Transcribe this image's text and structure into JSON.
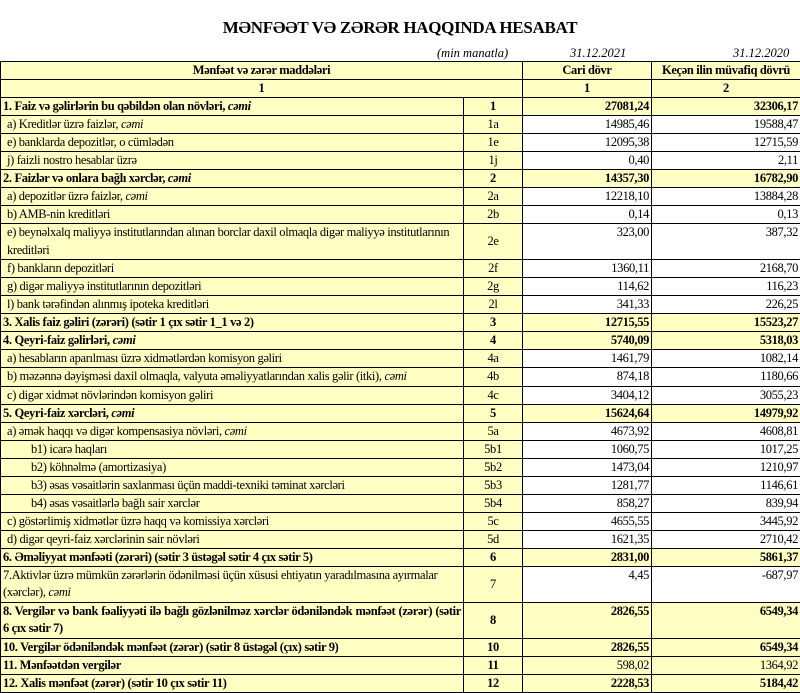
{
  "title": "MƏNFƏƏT VƏ ZƏRƏR HAQQINDA HESABAT",
  "units": "(min manatla)",
  "date_current": "31.12.2021",
  "date_previous": "31.12.2020",
  "header": {
    "col_items": "Mənfəət və zərər maddələri",
    "col_current": "Cari dövr",
    "col_previous": "Keçən ilin müvafiq dövrü",
    "num_items": "1",
    "num_current": "1",
    "num_previous": "2"
  },
  "colors": {
    "cell_fill": "#ffffc4",
    "value_fill": "#ffffff"
  },
  "rows": [
    {
      "label": "1. Faiz və gəlirlərin bu qəbildən olan növləri, ",
      "em": "cəmi",
      "code": "1",
      "current": "27081,24",
      "previous": "32306,17",
      "bold": true
    },
    {
      "label": "a) Kreditlər üzrə faizlər, ",
      "em": "cəmi",
      "code": "1a",
      "current": "14985,46",
      "previous": "19588,47",
      "indent": 1
    },
    {
      "label": "e) banklarda depozitlər, o cümlədən",
      "code": "1e",
      "current": "12095,38",
      "previous": "12715,59",
      "indent": 1
    },
    {
      "label": "j) faizli nostro hesablar üzrə",
      "code": "1j",
      "current": "0,40",
      "previous": "2,11",
      "indent": 1
    },
    {
      "label": "2. Faizlər və onlara bağlı xərclər, ",
      "em": "cəmi",
      "code": "2",
      "current": "14357,30",
      "previous": "16782,90",
      "bold": true
    },
    {
      "label": "a) depozitlər üzrə faizlər, ",
      "em": "cəmi",
      "code": "2a",
      "current": "12218,10",
      "previous": "13884,28",
      "indent": 1
    },
    {
      "label": "b) AMB-nin kreditləri",
      "code": "2b",
      "current": "0,14",
      "previous": "0,13",
      "indent": 1
    },
    {
      "label": "e) beynəlxalq maliyyə institutlarından alınan borclar daxil olmaqla digər maliyyə institutlarının kreditləri",
      "code": "2e",
      "current": "323,00",
      "previous": "387,32",
      "indent": 1,
      "double": true
    },
    {
      "label": "f) bankların depozitləri",
      "code": "2f",
      "current": "1360,11",
      "previous": "2168,70",
      "indent": 1
    },
    {
      "label": "g) digər maliyyə institutlarının depozitləri",
      "code": "2g",
      "current": "114,62",
      "previous": "116,23",
      "indent": 1
    },
    {
      "label": "l) bank tərəfindən alınmış ipoteka kreditləri",
      "code": "2l",
      "current": "341,33",
      "previous": "226,25",
      "indent": 1
    },
    {
      "label": "3. Xalis faiz gəliri (zərəri) (sətir 1 çıx sətir 1_1 və 2)",
      "code": "3",
      "current": "12715,55",
      "previous": "15523,27",
      "bold": true
    },
    {
      "label": "4. Qeyri-faiz gəlirləri, ",
      "em": "cəmi",
      "code": "4",
      "current": "5740,09",
      "previous": "5318,03",
      "bold": true
    },
    {
      "label": "a) hesabların aparılması üzrə xidmətlərdən komisyon gəliri",
      "code": "4a",
      "current": "1461,79",
      "previous": "1082,14",
      "indent": 1
    },
    {
      "label": "b) məzənnə dəyişməsi daxil olmaqla, valyuta əməliyyatlarından xalis gəlir (itki), ",
      "em": "cəmi",
      "code": "4b",
      "current": "874,18",
      "previous": "1180,66",
      "indent": 1,
      "double": true
    },
    {
      "label": "c) digər xidmət növlərindən komisyon gəliri",
      "code": "4c",
      "current": "3404,12",
      "previous": "3055,23",
      "indent": 1
    },
    {
      "label": "5. Qeyri-faiz xərcləri, ",
      "em": "cəmi",
      "code": "5",
      "current": "15624,64",
      "previous": "14979,92",
      "bold": true
    },
    {
      "label": "a) əmək haqqı və digər kompensasiya növləri, ",
      "em": "cəmi",
      "code": "5a",
      "current": "4673,92",
      "previous": "4608,81",
      "indent": 1
    },
    {
      "label": "b1) icarə haqları",
      "code": "5b1",
      "current": "1060,75",
      "previous": "1017,25",
      "indent": 2
    },
    {
      "label": "b2) köhnəlmə (amortizasiya)",
      "code": "5b2",
      "current": "1473,04",
      "previous": "1210,97",
      "indent": 2
    },
    {
      "label": "b3) əsas vəsaitlərin saxlanması üçün maddi-texniki təminat xərcləri",
      "code": "5b3",
      "current": "1281,77",
      "previous": "1146,61",
      "indent": 2
    },
    {
      "label": "b4) əsas vəsaitlərlə bağlı sair xərclər",
      "code": "5b4",
      "current": "858,27",
      "previous": "839,94",
      "indent": 2
    },
    {
      "label": "c) göstərlimiş xidmətlər üzrə haqq və komissiya xərcləri",
      "code": "5c",
      "current": "4655,55",
      "previous": "3445,92",
      "indent": 1
    },
    {
      "label": "d) digər qeyri-faiz xərclərinin sair növləri",
      "code": "5d",
      "current": "1621,35",
      "previous": "2710,42",
      "indent": 1
    },
    {
      "label": "6. Əməliyyat mənfəəti (zərəri) (sətir 3 üstəgəl sətir 4 çıx sətir 5)",
      "code": "6",
      "current": "2831,00",
      "previous": "5861,37",
      "bold": true
    },
    {
      "label": "7.Aktivlər üzrə mümkün zərərlərin ödənilməsi üçün xüsusi ehtiyatın yaradılmasına ayırmalar (xərclər), ",
      "em": "cəmi",
      "code": "7",
      "current": "4,45",
      "previous": "-687,97",
      "double": true
    },
    {
      "label": "8. Vergilər və bank fəaliyyəti ilə bağlı gözlənilməz xərclər ödəniləndək mənfəət (zərər) (sətir 6 çıx sətir 7)",
      "code": "8",
      "current": "2826,55",
      "previous": "6549,34",
      "bold": true,
      "double": true
    },
    {
      "label": "10. Vergilər ödəniləndək mənfəət (zərər) (sətir 8 üstəgəl (çıx) sətir 9)",
      "code": "10",
      "current": "2826,55",
      "previous": "6549,34",
      "bold": true
    },
    {
      "label": "11. Mənfəətdən vergilər",
      "code": "11",
      "current": "598,02",
      "previous": "1364,92",
      "bold": true,
      "plain_values": true
    },
    {
      "label": "12. Xalis mənfəət (zərər) (sətir 10 çıx sətir 11)",
      "code": "12",
      "current": "2228,53",
      "previous": "5184,42",
      "bold": true
    }
  ]
}
